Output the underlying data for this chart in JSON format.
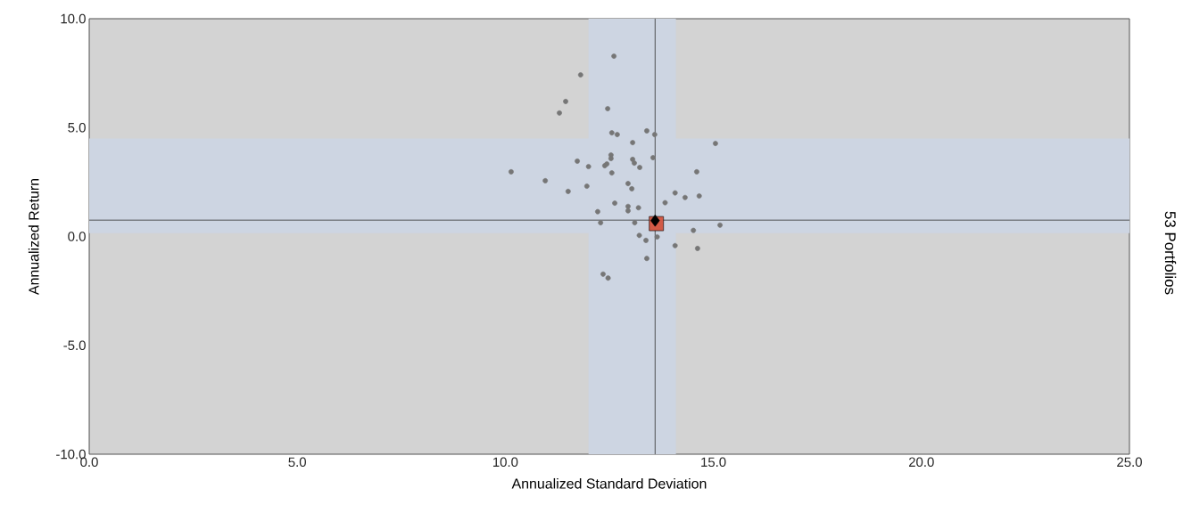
{
  "chart_data": {
    "type": "scatter",
    "xlabel": "Annualized Standard Deviation",
    "ylabel": "Annualized Return",
    "y2label": "53 Portfolios",
    "xlim": [
      0,
      25
    ],
    "ylim": [
      -10,
      10
    ],
    "xticks": [
      {
        "value": 0,
        "label": "0.0"
      },
      {
        "value": 5,
        "label": "5.0"
      },
      {
        "value": 10,
        "label": "10.0"
      },
      {
        "value": 15,
        "label": "15.0"
      },
      {
        "value": 20,
        "label": "20.0"
      },
      {
        "value": 25,
        "label": "25.0"
      }
    ],
    "yticks": [
      {
        "value": -10,
        "label": "-10.0"
      },
      {
        "value": -5,
        "label": "-5.0"
      },
      {
        "value": 0,
        "label": "0.0"
      },
      {
        "value": 5,
        "label": "5.0"
      },
      {
        "value": 10,
        "label": "10.0"
      }
    ],
    "grid": false,
    "bands": [
      {
        "axis": "x",
        "from": 12.0,
        "to": 14.1,
        "color": "#cdd5e2"
      },
      {
        "axis": "y",
        "from": 0.15,
        "to": 4.5,
        "color": "#cdd5e2"
      }
    ],
    "ref_lines": [
      {
        "axis": "x",
        "value": 13.6,
        "color": "#303030"
      },
      {
        "axis": "y",
        "value": 0.75,
        "color": "#303030"
      }
    ],
    "series": [
      {
        "color": "#767676",
        "marker": "circle",
        "x": [
          12.61,
          11.81,
          11.45,
          11.3,
          12.46,
          13.4,
          12.56,
          12.69,
          13.59,
          13.06,
          15.05,
          10.14,
          10.96,
          11.73,
          12.0,
          12.39,
          12.44,
          12.54,
          12.54,
          12.56,
          13.06,
          13.1,
          13.23,
          13.55,
          14.6,
          11.51,
          11.96,
          12.95,
          13.04,
          12.95,
          12.95,
          13.2,
          12.63,
          12.22,
          12.29,
          13.11,
          13.22,
          13.38,
          13.65,
          13.4,
          12.35,
          12.47,
          14.08,
          14.52,
          14.62,
          15.16,
          13.84,
          14.08,
          14.32,
          14.66
        ],
        "values": [
          8.28,
          7.42,
          6.2,
          5.67,
          5.87,
          4.85,
          4.76,
          4.68,
          4.68,
          4.31,
          4.27,
          2.97,
          2.56,
          3.46,
          3.21,
          3.25,
          3.33,
          3.74,
          3.58,
          2.92,
          3.54,
          3.37,
          3.17,
          3.62,
          2.97,
          2.07,
          2.31,
          2.43,
          2.19,
          1.38,
          1.18,
          1.32,
          1.53,
          1.14,
          0.63,
          0.63,
          0.05,
          -0.18,
          -0.02,
          -1.01,
          -1.73,
          -1.91,
          -0.42,
          0.28,
          -0.55,
          0.52,
          1.55,
          2.0,
          1.79,
          1.86
        ]
      },
      {
        "color": "#d25a46",
        "marker": "square",
        "x": [
          13.63
        ],
        "values": [
          0.59
        ]
      },
      {
        "color": "#000000",
        "marker": "diamond",
        "x": [
          13.6
        ],
        "values": [
          0.73
        ]
      }
    ]
  }
}
